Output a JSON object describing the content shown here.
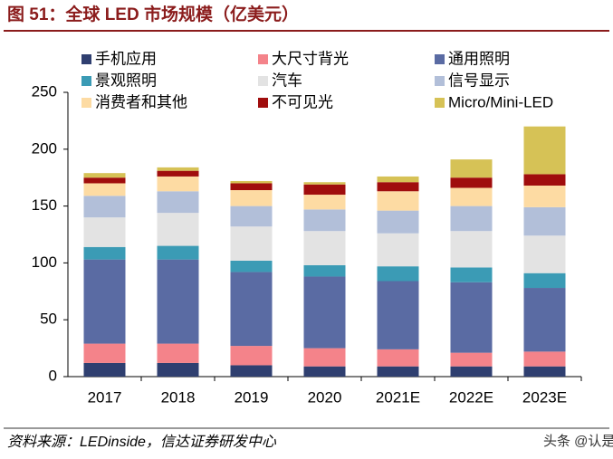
{
  "chart_data": {
    "type": "stacked-bar",
    "title": "图 51：全球 LED 市场规模（亿美元）",
    "source": "资料来源：LEDinside，信达证券研发中心",
    "watermark": "头条 @认是",
    "categories": [
      "2017",
      "2018",
      "2019",
      "2020",
      "2021E",
      "2022E",
      "2023E"
    ],
    "series": [
      {
        "name": "手机应用",
        "color": "#2f3f70",
        "values": [
          12,
          12,
          10,
          9,
          9,
          9,
          9
        ]
      },
      {
        "name": "大尺寸背光",
        "color": "#f4838a",
        "values": [
          17,
          17,
          17,
          16,
          15,
          12,
          13
        ]
      },
      {
        "name": "通用照明",
        "color": "#5a6ba3",
        "values": [
          74,
          74,
          65,
          63,
          60,
          62,
          56
        ]
      },
      {
        "name": "景观照明",
        "color": "#3b9bb5",
        "values": [
          11,
          12,
          10,
          10,
          13,
          13,
          13
        ]
      },
      {
        "name": "汽车",
        "color": "#e3e3e3",
        "values": [
          26,
          29,
          30,
          30,
          29,
          32,
          33
        ]
      },
      {
        "name": "信号显示",
        "color": "#b2bfd9",
        "values": [
          19,
          19,
          18,
          19,
          20,
          22,
          25
        ]
      },
      {
        "name": "消费者和其他",
        "color": "#fddba3",
        "values": [
          11,
          13,
          14,
          13,
          17,
          16,
          19
        ]
      },
      {
        "name": "不可见光",
        "color": "#a00d0d",
        "values": [
          5,
          5,
          6,
          9,
          8,
          9,
          10
        ]
      },
      {
        "name": "Micro/Mini-LED",
        "color": "#d6c256",
        "values": [
          4,
          3,
          2,
          2,
          5,
          16,
          42
        ]
      }
    ],
    "ylim": [
      0,
      250
    ],
    "yticks": [
      0,
      50,
      100,
      150,
      200,
      250
    ],
    "grid": false
  }
}
